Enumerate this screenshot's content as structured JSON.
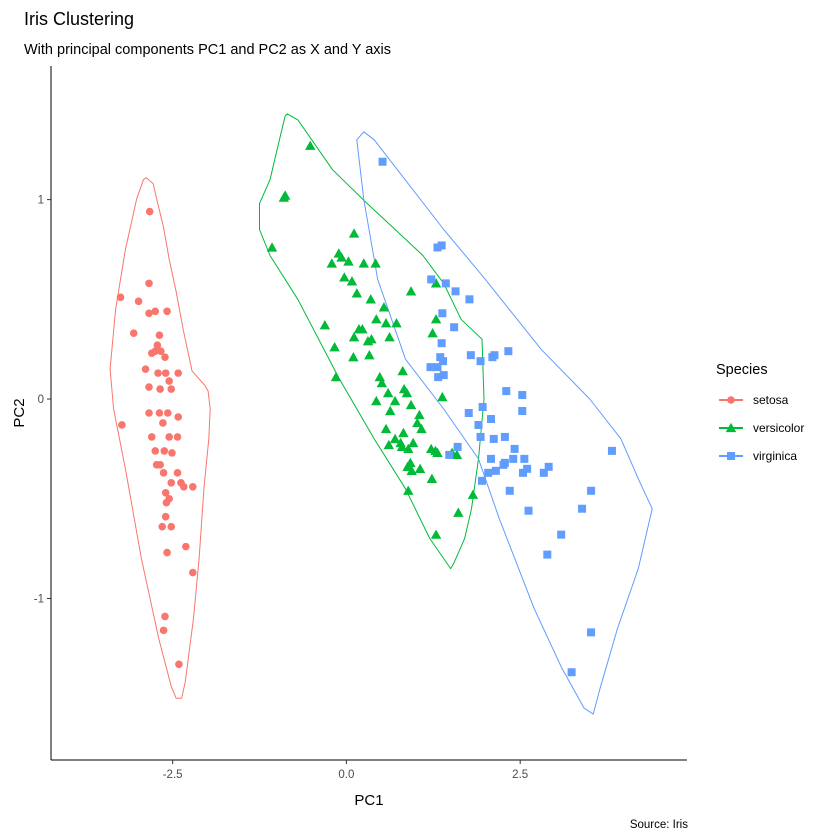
{
  "chart_data": {
    "type": "scatter",
    "title": "Iris Clustering",
    "subtitle": "With principal components PC1 and PC2 as X and Y axis",
    "xlabel": "PC1",
    "ylabel": "PC2",
    "caption": "Source: Iris",
    "xlim": [
      -4.25,
      4.9
    ],
    "ylim": [
      -1.81,
      1.67
    ],
    "x_ticks": [
      -2.5,
      0.0,
      2.5
    ],
    "x_tick_labels": [
      "-2.5",
      "0.0",
      "2.5"
    ],
    "y_ticks": [
      1,
      0,
      -1
    ],
    "y_tick_labels": [
      "1",
      "0",
      "-1"
    ],
    "grid": false,
    "legend": {
      "title": "Species",
      "position": "right"
    },
    "series": [
      {
        "name": "setosa",
        "color": "#F8766D",
        "marker": "circle",
        "points": [
          [
            -2.83,
            0.94
          ],
          [
            -2.84,
            0.58
          ],
          [
            -3.25,
            0.51
          ],
          [
            -2.99,
            0.49
          ],
          [
            -2.84,
            0.43
          ],
          [
            -2.75,
            0.44
          ],
          [
            -2.58,
            0.44
          ],
          [
            -3.06,
            0.33
          ],
          [
            -2.69,
            0.32
          ],
          [
            -2.72,
            0.27
          ],
          [
            -2.8,
            0.23
          ],
          [
            -2.75,
            0.24
          ],
          [
            -2.67,
            0.24
          ],
          [
            -2.61,
            0.21
          ],
          [
            -2.89,
            0.15
          ],
          [
            -2.71,
            0.13
          ],
          [
            -2.6,
            0.13
          ],
          [
            -2.42,
            0.13
          ],
          [
            -2.55,
            0.09
          ],
          [
            -2.84,
            0.06
          ],
          [
            -2.68,
            0.05
          ],
          [
            -2.52,
            0.05
          ],
          [
            -2.69,
            -0.07
          ],
          [
            -3.23,
            -0.13
          ],
          [
            -2.84,
            -0.07
          ],
          [
            -2.57,
            -0.07
          ],
          [
            -2.42,
            -0.09
          ],
          [
            -2.64,
            -0.12
          ],
          [
            -2.55,
            -0.19
          ],
          [
            -2.43,
            -0.19
          ],
          [
            -2.8,
            -0.19
          ],
          [
            -2.62,
            -0.26
          ],
          [
            -2.75,
            -0.26
          ],
          [
            -2.51,
            -0.27
          ],
          [
            -2.73,
            -0.33
          ],
          [
            -2.68,
            -0.33
          ],
          [
            -2.63,
            -0.37
          ],
          [
            -2.43,
            -0.37
          ],
          [
            -2.52,
            -0.42
          ],
          [
            -2.6,
            -0.47
          ],
          [
            -2.38,
            -0.42
          ],
          [
            -2.34,
            -0.44
          ],
          [
            -2.21,
            -0.44
          ],
          [
            -2.55,
            -0.5
          ],
          [
            -2.59,
            -0.52
          ],
          [
            -2.6,
            -0.59
          ],
          [
            -2.65,
            -0.64
          ],
          [
            -2.52,
            -0.64
          ],
          [
            -2.31,
            -0.74
          ],
          [
            -2.58,
            -0.77
          ],
          [
            -2.21,
            -0.87
          ],
          [
            -2.61,
            -1.09
          ],
          [
            -2.63,
            -1.16
          ],
          [
            -2.41,
            -1.33
          ]
        ]
      },
      {
        "name": "versicolor",
        "color": "#00BA38",
        "marker": "triangle",
        "points": [
          [
            -0.52,
            1.27
          ],
          [
            -0.9,
            1.01
          ],
          [
            -0.88,
            1.02
          ],
          [
            -1.07,
            0.76
          ],
          [
            0.11,
            0.83
          ],
          [
            -0.11,
            0.73
          ],
          [
            -0.07,
            0.71
          ],
          [
            0.03,
            0.69
          ],
          [
            -0.21,
            0.68
          ],
          [
            0.25,
            0.68
          ],
          [
            0.42,
            0.68
          ],
          [
            -0.03,
            0.61
          ],
          [
            0.08,
            0.59
          ],
          [
            0.15,
            0.53
          ],
          [
            0.35,
            0.5
          ],
          [
            0.93,
            0.54
          ],
          [
            1.29,
            0.58
          ],
          [
            0.54,
            0.46
          ],
          [
            0.43,
            0.4
          ],
          [
            0.23,
            0.35
          ],
          [
            0.57,
            0.38
          ],
          [
            0.72,
            0.38
          ],
          [
            1.29,
            0.4
          ],
          [
            -0.31,
            0.37
          ],
          [
            0.11,
            0.31
          ],
          [
            0.18,
            0.35
          ],
          [
            0.36,
            0.3
          ],
          [
            0.62,
            0.31
          ],
          [
            1.24,
            0.33
          ],
          [
            0.31,
            0.29
          ],
          [
            -0.17,
            0.26
          ],
          [
            0.1,
            0.21
          ],
          [
            0.33,
            0.22
          ],
          [
            0.51,
            0.08
          ],
          [
            0.81,
            0.14
          ],
          [
            -0.15,
            0.11
          ],
          [
            0.48,
            0.11
          ],
          [
            0.83,
            0.05
          ],
          [
            0.87,
            0.03
          ],
          [
            0.6,
            0.03
          ],
          [
            1.38,
            0.01
          ],
          [
            0.7,
            -0.01
          ],
          [
            0.93,
            -0.03
          ],
          [
            0.43,
            -0.01
          ],
          [
            0.63,
            -0.06
          ],
          [
            1.05,
            -0.08
          ],
          [
            1.02,
            -0.12
          ],
          [
            0.57,
            -0.15
          ],
          [
            1.08,
            -0.15
          ],
          [
            0.82,
            -0.17
          ],
          [
            0.7,
            -0.2
          ],
          [
            0.61,
            -0.23
          ],
          [
            0.78,
            -0.22
          ],
          [
            0.96,
            -0.22
          ],
          [
            0.8,
            -0.24
          ],
          [
            0.89,
            -0.25
          ],
          [
            1.22,
            -0.25
          ],
          [
            1.28,
            -0.26
          ],
          [
            1.31,
            -0.27
          ],
          [
            1.52,
            -0.27
          ],
          [
            1.59,
            -0.28
          ],
          [
            0.92,
            -0.32
          ],
          [
            0.88,
            -0.34
          ],
          [
            1.06,
            -0.35
          ],
          [
            0.94,
            -0.36
          ],
          [
            1.23,
            -0.4
          ],
          [
            0.89,
            -0.46
          ],
          [
            1.82,
            -0.48
          ],
          [
            1.61,
            -0.57
          ],
          [
            1.29,
            -0.68
          ]
        ]
      },
      {
        "name": "virginica",
        "color": "#619CFF",
        "marker": "square",
        "points": [
          [
            0.52,
            1.19
          ],
          [
            1.31,
            0.76
          ],
          [
            1.37,
            0.77
          ],
          [
            1.22,
            0.6
          ],
          [
            1.43,
            0.58
          ],
          [
            1.57,
            0.54
          ],
          [
            1.77,
            0.5
          ],
          [
            1.38,
            0.43
          ],
          [
            1.55,
            0.36
          ],
          [
            1.37,
            0.28
          ],
          [
            1.35,
            0.21
          ],
          [
            1.79,
            0.22
          ],
          [
            2.1,
            0.21
          ],
          [
            2.13,
            0.22
          ],
          [
            2.33,
            0.24
          ],
          [
            1.39,
            0.19
          ],
          [
            1.31,
            0.16
          ],
          [
            1.21,
            0.16
          ],
          [
            1.93,
            0.19
          ],
          [
            1.32,
            0.11
          ],
          [
            1.4,
            0.12
          ],
          [
            2.3,
            0.04
          ],
          [
            2.53,
            0.02
          ],
          [
            1.76,
            -0.07
          ],
          [
            1.96,
            -0.04
          ],
          [
            2.53,
            -0.06
          ],
          [
            2.08,
            -0.1
          ],
          [
            1.9,
            -0.13
          ],
          [
            1.93,
            -0.19
          ],
          [
            2.28,
            -0.19
          ],
          [
            2.12,
            -0.2
          ],
          [
            1.6,
            -0.24
          ],
          [
            1.48,
            -0.28
          ],
          [
            2.42,
            -0.25
          ],
          [
            2.08,
            -0.3
          ],
          [
            2.4,
            -0.3
          ],
          [
            2.56,
            -0.3
          ],
          [
            2.6,
            -0.35
          ],
          [
            2.28,
            -0.32
          ],
          [
            2.26,
            -0.33
          ],
          [
            2.04,
            -0.37
          ],
          [
            2.15,
            -0.36
          ],
          [
            2.54,
            -0.37
          ],
          [
            2.84,
            -0.37
          ],
          [
            2.91,
            -0.34
          ],
          [
            3.82,
            -0.26
          ],
          [
            1.95,
            -0.41
          ],
          [
            2.35,
            -0.46
          ],
          [
            3.52,
            -0.46
          ],
          [
            3.39,
            -0.55
          ],
          [
            2.62,
            -0.56
          ],
          [
            3.09,
            -0.68
          ],
          [
            2.89,
            -0.78
          ],
          [
            3.52,
            -1.17
          ],
          [
            3.24,
            -1.37
          ]
        ]
      }
    ],
    "hulls": [
      {
        "series": "setosa",
        "color": "#F8766D",
        "path": [
          [
            -2.88,
            1.11
          ],
          [
            -2.78,
            1.08
          ],
          [
            -2.72,
            0.99
          ],
          [
            -2.63,
            0.86
          ],
          [
            -2.55,
            0.7
          ],
          [
            -2.45,
            0.54
          ],
          [
            -2.35,
            0.35
          ],
          [
            -2.22,
            0.14
          ],
          [
            -2.04,
            0.07
          ],
          [
            -1.99,
            0.04
          ],
          [
            -1.96,
            -0.05
          ],
          [
            -1.98,
            -0.2
          ],
          [
            -2.05,
            -0.45
          ],
          [
            -2.12,
            -0.8
          ],
          [
            -2.2,
            -1.1
          ],
          [
            -2.32,
            -1.42
          ],
          [
            -2.37,
            -1.5
          ],
          [
            -2.45,
            -1.5
          ],
          [
            -2.52,
            -1.44
          ],
          [
            -2.7,
            -1.2
          ],
          [
            -2.95,
            -0.8
          ],
          [
            -3.18,
            -0.35
          ],
          [
            -3.35,
            -0.05
          ],
          [
            -3.4,
            0.15
          ],
          [
            -3.32,
            0.45
          ],
          [
            -3.18,
            0.75
          ],
          [
            -3.02,
            1.0
          ],
          [
            -2.92,
            1.1
          ]
        ]
      },
      {
        "series": "versicolor",
        "color": "#00BA38",
        "path": [
          [
            -0.85,
            1.43
          ],
          [
            -0.7,
            1.4
          ],
          [
            -0.2,
            1.15
          ],
          [
            0.3,
            0.98
          ],
          [
            0.7,
            0.85
          ],
          [
            1.1,
            0.72
          ],
          [
            1.4,
            0.58
          ],
          [
            1.65,
            0.4
          ],
          [
            1.95,
            0.3
          ],
          [
            1.98,
            0.0
          ],
          [
            1.9,
            -0.3
          ],
          [
            1.8,
            -0.55
          ],
          [
            1.7,
            -0.7
          ],
          [
            1.55,
            -0.82
          ],
          [
            1.5,
            -0.85
          ],
          [
            1.2,
            -0.7
          ],
          [
            0.85,
            -0.45
          ],
          [
            0.4,
            -0.2
          ],
          [
            -0.1,
            0.1
          ],
          [
            -0.7,
            0.5
          ],
          [
            -1.1,
            0.72
          ],
          [
            -1.25,
            0.85
          ],
          [
            -1.25,
            0.98
          ],
          [
            -1.1,
            1.1
          ],
          [
            -0.95,
            1.32
          ],
          [
            -0.88,
            1.42
          ]
        ]
      },
      {
        "series": "virginica",
        "color": "#619CFF",
        "path": [
          [
            0.25,
            1.34
          ],
          [
            0.4,
            1.3
          ],
          [
            0.8,
            1.12
          ],
          [
            1.4,
            0.85
          ],
          [
            2.0,
            0.6
          ],
          [
            2.8,
            0.25
          ],
          [
            3.5,
            0.0
          ],
          [
            3.95,
            -0.2
          ],
          [
            4.2,
            -0.4
          ],
          [
            4.4,
            -0.55
          ],
          [
            4.2,
            -0.85
          ],
          [
            3.9,
            -1.15
          ],
          [
            3.65,
            -1.45
          ],
          [
            3.55,
            -1.58
          ],
          [
            3.42,
            -1.55
          ],
          [
            3.1,
            -1.35
          ],
          [
            2.7,
            -1.05
          ],
          [
            2.2,
            -0.6
          ],
          [
            1.9,
            -0.3
          ],
          [
            1.4,
            -0.05
          ],
          [
            0.85,
            0.2
          ],
          [
            0.45,
            0.6
          ],
          [
            0.25,
            1.0
          ],
          [
            0.15,
            1.3
          ]
        ]
      }
    ]
  }
}
